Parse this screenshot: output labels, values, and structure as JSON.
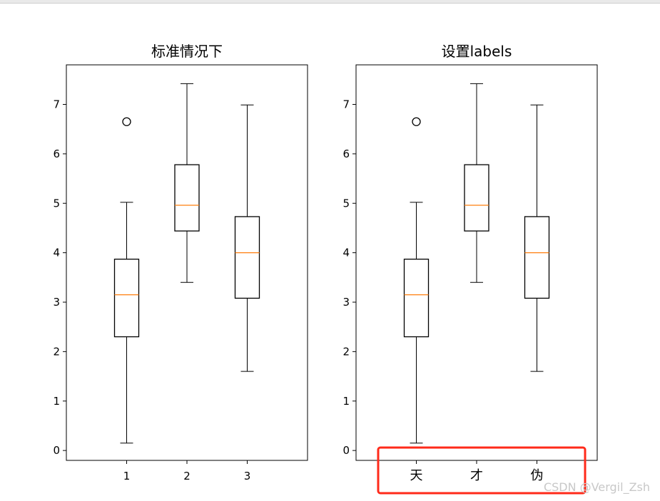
{
  "chart_data": [
    {
      "type": "box",
      "title": "标准情况下",
      "categories": [
        "1",
        "2",
        "3"
      ],
      "ylim": [
        -0.2,
        7.8
      ],
      "yticks": [
        0,
        1,
        2,
        3,
        4,
        5,
        6,
        7
      ],
      "boxes": [
        {
          "label": "1",
          "whislo": 0.15,
          "q1": 2.3,
          "med": 3.15,
          "q3": 3.87,
          "whishi": 5.02,
          "fliers": [
            6.65
          ]
        },
        {
          "label": "2",
          "whislo": 3.4,
          "q1": 4.44,
          "med": 4.96,
          "q3": 5.78,
          "whishi": 7.42,
          "fliers": []
        },
        {
          "label": "3",
          "whislo": 1.6,
          "q1": 3.08,
          "med": 4.0,
          "q3": 4.73,
          "whishi": 6.99,
          "fliers": []
        }
      ]
    },
    {
      "type": "box",
      "title": "设置labels",
      "categories": [
        "天",
        "才",
        "伪"
      ],
      "ylim": [
        -0.2,
        7.8
      ],
      "yticks": [
        0,
        1,
        2,
        3,
        4,
        5,
        6,
        7
      ],
      "boxes": [
        {
          "label": "天",
          "whislo": 0.15,
          "q1": 2.3,
          "med": 3.15,
          "q3": 3.87,
          "whishi": 5.02,
          "fliers": [
            6.65
          ]
        },
        {
          "label": "才",
          "whislo": 3.4,
          "q1": 4.44,
          "med": 4.96,
          "q3": 5.78,
          "whishi": 7.42,
          "fliers": []
        },
        {
          "label": "伪",
          "whislo": 1.6,
          "q1": 3.08,
          "med": 4.0,
          "q3": 4.73,
          "whishi": 6.99,
          "fliers": []
        }
      ]
    }
  ],
  "colors": {
    "box": "#000000",
    "median": "#ff7f0e",
    "highlight": "#ff2a1a"
  },
  "watermark": "CSDN @Vergil_Zsh"
}
